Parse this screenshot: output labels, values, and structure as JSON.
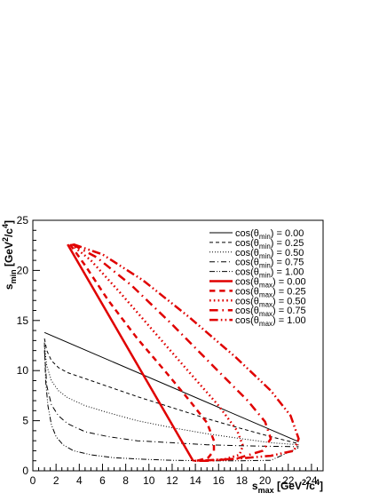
{
  "chart_data": {
    "type": "line",
    "title": "",
    "xlabel": {
      "main": "s",
      "sub": "max",
      "unit_pre": " [GeV",
      "sup1": "2",
      "unit_mid": "/c",
      "sup2": "4",
      "unit_post": "]"
    },
    "ylabel": {
      "main": "s",
      "sub": "min",
      "unit_pre": " [GeV",
      "sup1": "2",
      "unit_mid": "/c",
      "sup2": "4",
      "unit_post": "]"
    },
    "xlim": [
      0,
      25
    ],
    "ylim": [
      0,
      25
    ],
    "x_ticks": [
      0,
      2,
      4,
      6,
      8,
      10,
      12,
      14,
      16,
      18,
      20,
      22,
      24
    ],
    "y_ticks": [
      0,
      5,
      10,
      15,
      20,
      25
    ],
    "grid": false,
    "legend_position": "top-right",
    "colors": {
      "black": "#000000",
      "red": "#e00000"
    },
    "series": [
      {
        "label": {
          "pre": "cos(θ",
          "sub": "min",
          "post": ") = 0.00"
        },
        "color": "#000000",
        "style": "solid",
        "width": 1,
        "x": [
          1.0,
          22.9
        ],
        "y": [
          13.8,
          2.9
        ]
      },
      {
        "label": {
          "pre": "cos(θ",
          "sub": "min",
          "post": ") = 0.25"
        },
        "color": "#000000",
        "style": "dashed",
        "width": 1,
        "x": [
          1.0,
          1.2,
          1.6,
          2.2,
          3.0,
          4.5,
          6.5,
          9.0,
          12.0,
          15.0,
          18.0,
          20.5,
          22.9
        ],
        "y": [
          13.2,
          12.0,
          11.0,
          10.3,
          9.8,
          9.2,
          8.4,
          7.4,
          6.3,
          5.2,
          4.2,
          3.4,
          2.7
        ]
      },
      {
        "label": {
          "pre": "cos(θ",
          "sub": "min",
          "post": ") = 0.50"
        },
        "color": "#000000",
        "style": "dotted",
        "width": 1,
        "x": [
          1.0,
          1.2,
          1.6,
          2.2,
          3.0,
          4.5,
          6.5,
          9.0,
          12.0,
          15.0,
          18.0,
          20.5,
          22.9
        ],
        "y": [
          12.5,
          10.5,
          9.0,
          8.0,
          7.3,
          6.5,
          5.8,
          5.0,
          4.3,
          3.7,
          3.2,
          2.8,
          2.6
        ]
      },
      {
        "label": {
          "pre": "cos(θ",
          "sub": "min",
          "post": ") = 0.75"
        },
        "color": "#000000",
        "style": "dashdot",
        "width": 1,
        "x": [
          1.0,
          1.2,
          1.6,
          2.2,
          3.0,
          4.5,
          6.5,
          9.0,
          12.0,
          15.0,
          18.0,
          20.5,
          22.9
        ],
        "y": [
          12.0,
          8.5,
          6.6,
          5.5,
          4.7,
          3.9,
          3.4,
          3.0,
          2.8,
          2.6,
          2.5,
          2.45,
          2.4
        ]
      },
      {
        "label": {
          "pre": "cos(θ",
          "sub": "min",
          "post": ") = 1.00"
        },
        "color": "#000000",
        "style": "dashdotdot",
        "width": 1,
        "x": [
          1.0,
          1.1,
          1.3,
          1.6,
          2.0,
          2.6,
          3.5,
          5.0,
          7.0,
          9.5,
          12.0,
          15.0,
          18.0,
          20.5,
          22.9
        ],
        "y": [
          12.8,
          9.0,
          6.5,
          4.6,
          3.4,
          2.6,
          2.0,
          1.6,
          1.3,
          1.15,
          1.05,
          1.0,
          1.0,
          1.05,
          2.3
        ]
      },
      {
        "label": {
          "pre": "cos(θ",
          "sub": "max",
          "post": ") = 0.00"
        },
        "color": "#e00000",
        "style": "solid",
        "width": 2.5,
        "x": [
          3.0,
          13.8
        ],
        "y": [
          22.6,
          1.0
        ]
      },
      {
        "label": {
          "pre": "cos(θ",
          "sub": "max",
          "post": ") = 0.25"
        },
        "color": "#e00000",
        "style": "dashed",
        "width": 2.5,
        "x": [
          3.2,
          4.5,
          6.5,
          9.0,
          11.5,
          13.5,
          15.0,
          15.6,
          15.6,
          15.1,
          14.3,
          13.8
        ],
        "y": [
          22.6,
          20.5,
          17.0,
          13.2,
          9.8,
          7.0,
          4.8,
          3.0,
          2.0,
          1.3,
          1.05,
          1.0
        ]
      },
      {
        "label": {
          "pre": "cos(θ",
          "sub": "max",
          "post": ") = 0.50"
        },
        "color": "#e00000",
        "style": "dotted",
        "width": 2.5,
        "x": [
          3.3,
          5.0,
          7.5,
          10.5,
          13.5,
          16.0,
          17.6,
          18.1,
          17.8,
          16.5,
          14.8,
          13.8
        ],
        "y": [
          22.6,
          21.0,
          17.8,
          13.8,
          9.8,
          6.5,
          4.0,
          2.5,
          1.6,
          1.15,
          1.0,
          1.0
        ]
      },
      {
        "label": {
          "pre": "cos(θ",
          "sub": "max",
          "post": ") = 0.75"
        },
        "color": "#e00000",
        "style": "dashdot",
        "width": 2.5,
        "x": [
          3.4,
          5.5,
          8.5,
          12.0,
          15.5,
          18.5,
          20.0,
          20.5,
          19.8,
          17.5,
          15.0,
          13.8
        ],
        "y": [
          22.6,
          21.3,
          18.5,
          14.6,
          10.5,
          7.0,
          4.9,
          3.2,
          2.0,
          1.2,
          1.0,
          1.0
        ]
      },
      {
        "label": {
          "pre": "cos(θ",
          "sub": "max",
          "post": ") = 1.00"
        },
        "color": "#e00000",
        "style": "dashdotdot",
        "width": 2.5,
        "x": [
          3.5,
          6.0,
          9.5,
          13.5,
          17.5,
          20.5,
          22.2,
          22.9,
          22.5,
          20.5,
          17.5,
          15.0,
          13.8
        ],
        "y": [
          22.6,
          21.6,
          19.0,
          15.3,
          11.3,
          8.0,
          5.5,
          3.2,
          2.0,
          1.5,
          1.2,
          1.05,
          1.0
        ]
      }
    ]
  }
}
